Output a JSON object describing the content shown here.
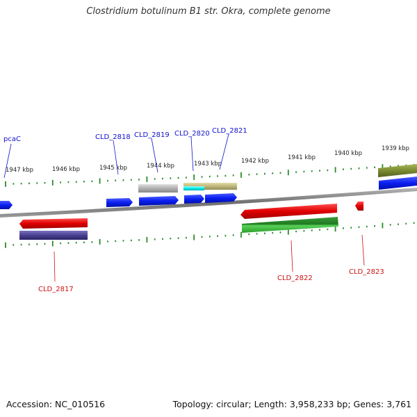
{
  "title": "Clostridium botulinum B1 str. Okra, complete genome",
  "accession": "Accession: NC_010516",
  "topology": "Topology: circular; Length: 3,958,233 bp; Genes: 3,761",
  "ticks": [
    "1947 kbp",
    "1946 kbp",
    "1945 kbp",
    "1944 kbp",
    "1943 kbp",
    "1942 kbp",
    "1941 kbp",
    "1940 kbp",
    "1939 kbp"
  ],
  "forward_genes": [
    "pcaC",
    "CLD_2818",
    "CLD_2819",
    "CLD_2820",
    "CLD_2821"
  ],
  "reverse_genes": [
    "CLD_2817",
    "CLD_2822",
    "CLD_2823"
  ],
  "colors": {
    "forward_label": "#1010cc",
    "reverse_label": "#cc1010",
    "cds_forward": "#0a1ef0",
    "cds_reverse": "#e00000",
    "tick": "#2a8a2a",
    "backbone": "#8a8a8a"
  }
}
